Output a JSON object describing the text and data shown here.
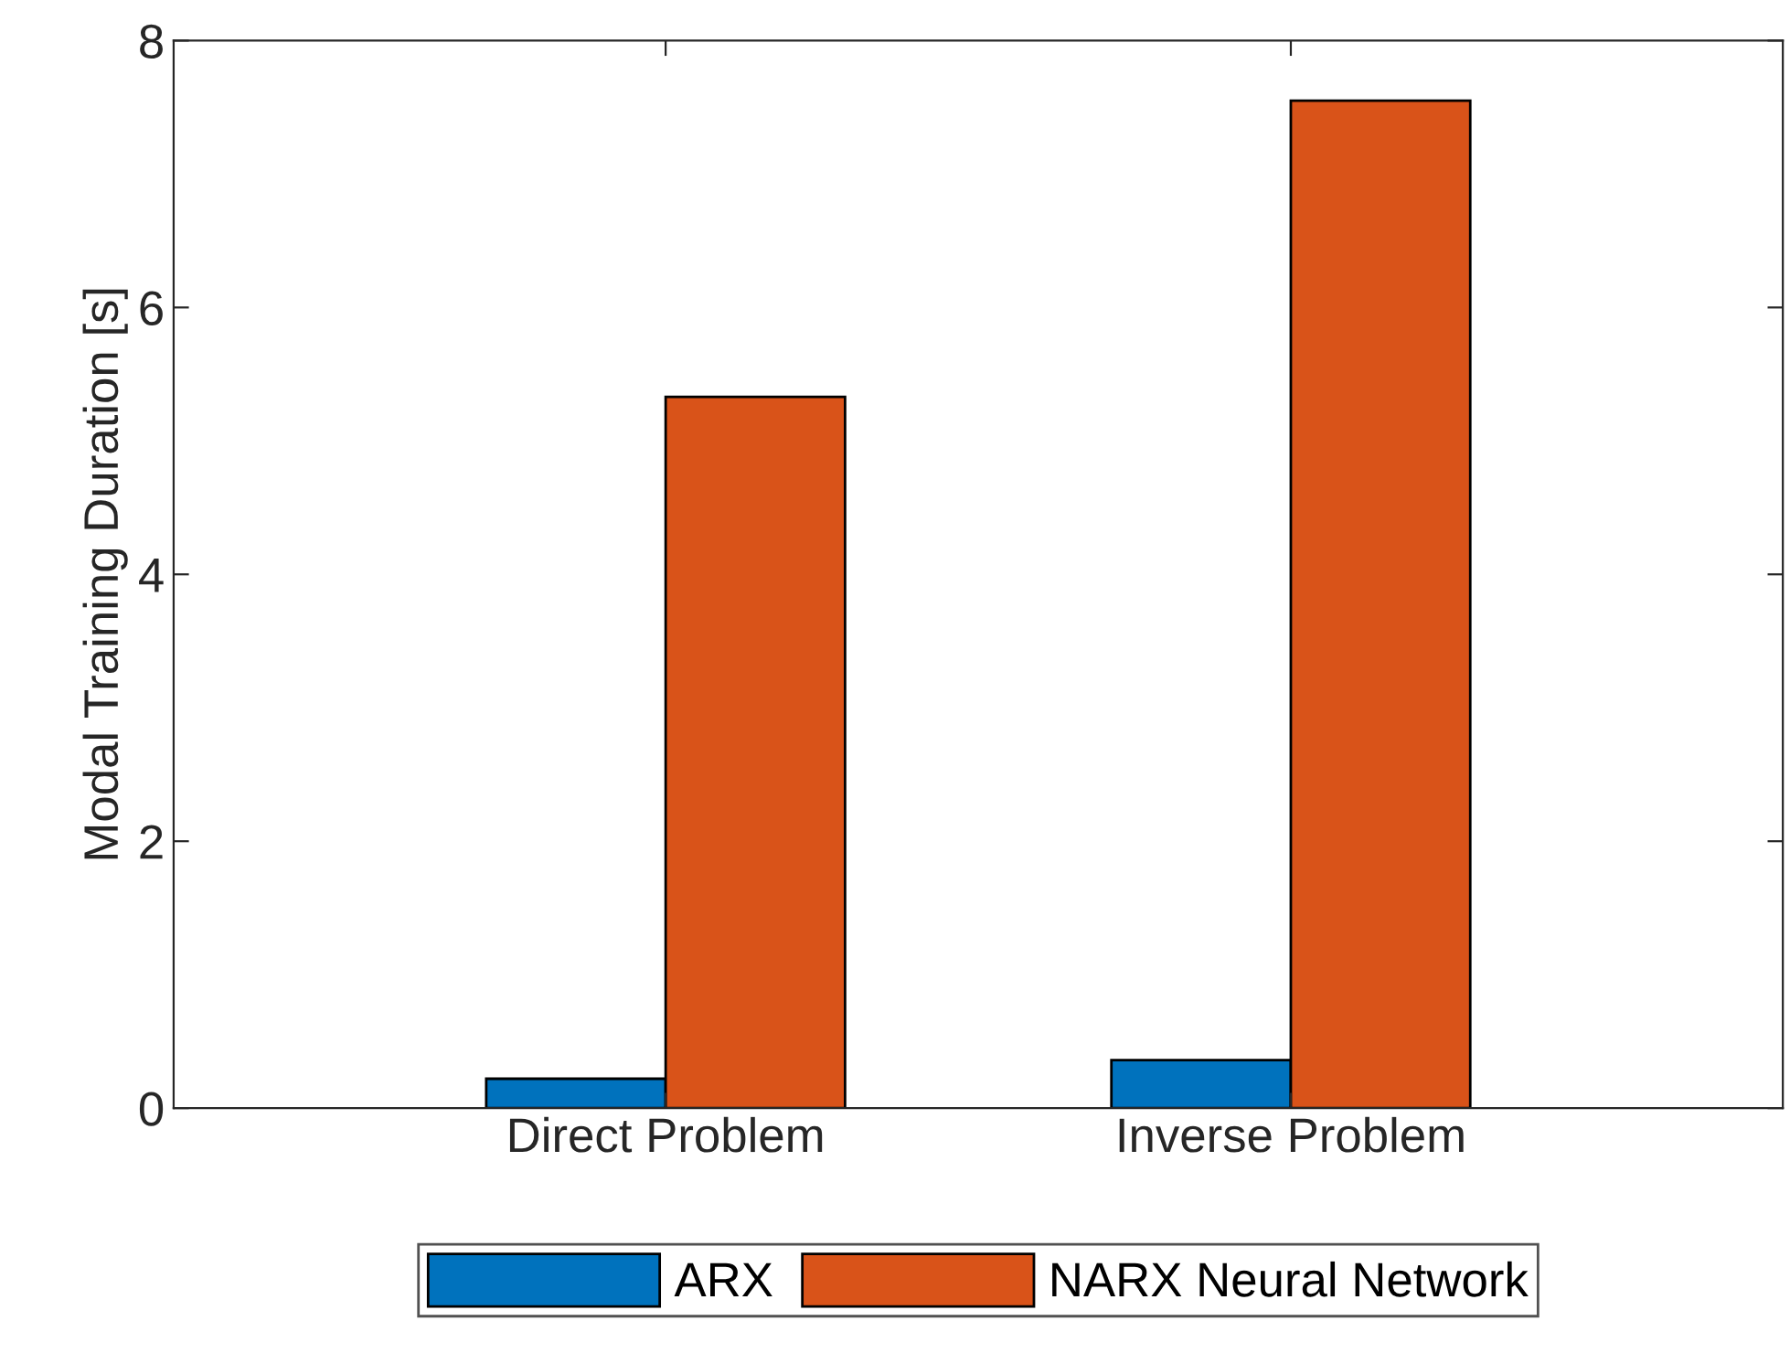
{
  "chart_data": {
    "type": "bar",
    "ylabel": "Modal Training Duration [s]",
    "categories": [
      "Direct Problem",
      "Inverse Problem"
    ],
    "series": [
      {
        "name": "ARX",
        "color": "#0072bd",
        "values": [
          0.22,
          0.36
        ]
      },
      {
        "name": "NARX Neural Network",
        "color": "#d95319",
        "values": [
          5.33,
          7.55
        ]
      }
    ],
    "ylim": [
      0,
      8
    ],
    "yticks": [
      0,
      2,
      4,
      6,
      8
    ],
    "grid": false,
    "legend": "bottom"
  }
}
